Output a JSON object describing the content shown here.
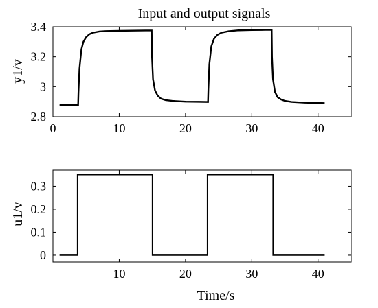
{
  "chart_data": [
    {
      "type": "line",
      "title": "Input and output signals",
      "xlabel": "",
      "ylabel": "y1/v",
      "xlim": [
        0,
        45
      ],
      "ylim": [
        2.8,
        3.4
      ],
      "xticks": [
        0,
        10,
        20,
        30,
        40
      ],
      "xtick_labels": [
        "0",
        "10",
        "20",
        "30",
        "40"
      ],
      "yticks": [
        2.8,
        3,
        3.2,
        3.4
      ],
      "ytick_labels": [
        "2.8",
        "3",
        "3.2",
        "3.4"
      ],
      "grid": false,
      "line_color": "#1a1a1a",
      "series": [
        {
          "x": [
            1.0,
            2.0,
            3.0,
            3.8,
            3.85,
            4.0,
            4.3,
            4.6,
            5.0,
            5.5,
            6.0,
            7.0,
            8.0,
            10.0,
            12.0,
            14.0,
            14.9,
            14.95,
            15.1,
            15.4,
            15.8,
            16.3,
            17.0,
            18.0,
            20.0,
            22.0,
            23.4,
            23.45,
            23.6,
            23.9,
            24.3,
            24.8,
            25.4,
            26.5,
            28.0,
            30.0,
            32.0,
            33.0,
            33.05,
            33.2,
            33.5,
            33.9,
            34.4,
            35.0,
            36.0,
            38.0,
            40.0,
            41.0
          ],
          "y": [
            2.878,
            2.877,
            2.878,
            2.877,
            2.96,
            3.12,
            3.25,
            3.3,
            3.33,
            3.35,
            3.36,
            3.368,
            3.371,
            3.373,
            3.374,
            3.375,
            3.375,
            3.2,
            3.05,
            2.975,
            2.94,
            2.92,
            2.91,
            2.905,
            2.9,
            2.899,
            2.898,
            2.98,
            3.15,
            3.27,
            3.32,
            3.345,
            3.36,
            3.37,
            3.376,
            3.378,
            3.379,
            3.38,
            3.2,
            3.05,
            2.965,
            2.93,
            2.915,
            2.905,
            2.898,
            2.893,
            2.891,
            2.89
          ]
        }
      ]
    },
    {
      "type": "line",
      "title": "",
      "xlabel": "Time/s",
      "ylabel": "u1/v",
      "xlim": [
        0,
        45
      ],
      "ylim": [
        -0.03,
        0.37
      ],
      "xticks": [
        10,
        20,
        30,
        40
      ],
      "xtick_labels": [
        "10",
        "20",
        "30",
        "40"
      ],
      "yticks": [
        0,
        0.1,
        0.2,
        0.3
      ],
      "ytick_labels": [
        "0",
        "0.1",
        "0.2",
        "0.3"
      ],
      "grid": false,
      "line_color": "#000000",
      "series": [
        {
          "x": [
            1.0,
            3.7,
            3.7,
            15.0,
            15.0,
            23.3,
            23.3,
            33.2,
            33.2,
            41.0
          ],
          "y": [
            0,
            0,
            0.35,
            0.35,
            0,
            0,
            0.35,
            0.35,
            0,
            0
          ]
        }
      ]
    }
  ]
}
